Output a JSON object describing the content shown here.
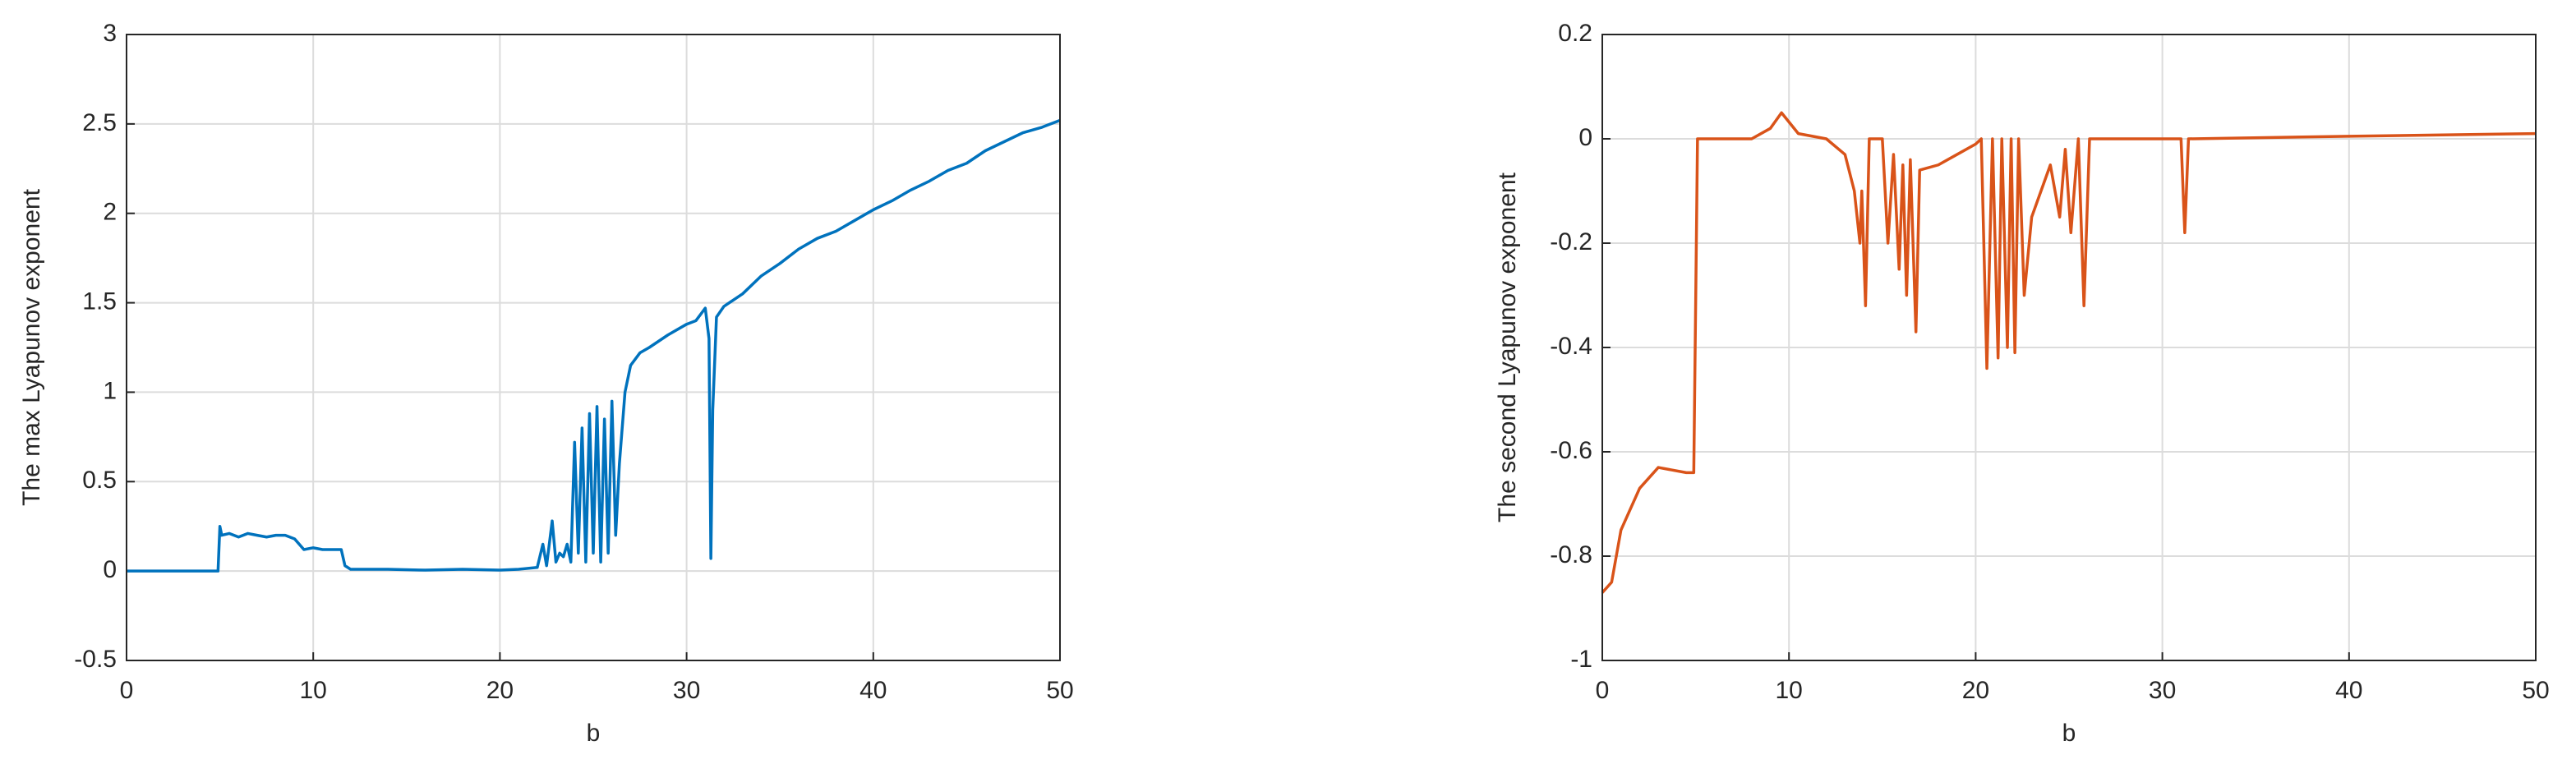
{
  "chart_data": [
    {
      "type": "line",
      "xlabel": "b",
      "ylabel": "The max Lyapunov exponent",
      "xlim": [
        0,
        50
      ],
      "xticks": [
        0,
        10,
        20,
        30,
        40,
        50
      ],
      "ylim": [
        -0.5,
        3
      ],
      "yticks": [
        -0.5,
        0,
        0.5,
        1,
        1.5,
        2,
        2.5,
        3
      ],
      "grid": true,
      "x": [
        0,
        4.9,
        5,
        5.1,
        5.5,
        6,
        6.5,
        7,
        7.5,
        8,
        8.5,
        9,
        9.5,
        10,
        10.5,
        11,
        11.5,
        11.7,
        12,
        14,
        16,
        18,
        20,
        21,
        22,
        22.3,
        22.5,
        22.8,
        23,
        23.2,
        23.4,
        23.6,
        23.8,
        24,
        24.2,
        24.4,
        24.6,
        24.8,
        25,
        25.2,
        25.4,
        25.6,
        25.8,
        26,
        26.2,
        26.4,
        26.7,
        27,
        27.5,
        28,
        29,
        30,
        30.5,
        31,
        31.2,
        31.3,
        31.4,
        31.6,
        32,
        33,
        34,
        35,
        36,
        37,
        38,
        39,
        40,
        41,
        42,
        43,
        44,
        45,
        46,
        47,
        48,
        49,
        50
      ],
      "series": [
        {
          "color": "#0072bd",
          "values": [
            0,
            0,
            0.25,
            0.2,
            0.21,
            0.19,
            0.21,
            0.2,
            0.19,
            0.2,
            0.2,
            0.18,
            0.12,
            0.13,
            0.12,
            0.12,
            0.12,
            0.03,
            0.01,
            0.01,
            0.005,
            0.01,
            0.005,
            0.01,
            0.02,
            0.15,
            0.03,
            0.28,
            0.05,
            0.1,
            0.08,
            0.15,
            0.05,
            0.72,
            0.1,
            0.8,
            0.05,
            0.88,
            0.1,
            0.92,
            0.05,
            0.85,
            0.1,
            0.95,
            0.2,
            0.6,
            1.0,
            1.15,
            1.22,
            1.25,
            1.32,
            1.38,
            1.4,
            1.47,
            1.3,
            0.07,
            0.9,
            1.42,
            1.48,
            1.55,
            1.65,
            1.72,
            1.8,
            1.86,
            1.9,
            1.96,
            2.02,
            2.07,
            2.13,
            2.18,
            2.24,
            2.28,
            2.35,
            2.4,
            2.45,
            2.48,
            2.52
          ]
        }
      ]
    },
    {
      "type": "line",
      "xlabel": "b",
      "ylabel": "The second Lyapunov exponent",
      "xlim": [
        0,
        50
      ],
      "xticks": [
        0,
        10,
        20,
        30,
        40,
        50
      ],
      "ylim": [
        -1,
        0.2
      ],
      "yticks": [
        -1,
        -0.8,
        -0.6,
        -0.4,
        -0.2,
        0,
        0.2
      ],
      "grid": true,
      "x": [
        0,
        0.5,
        1,
        2,
        3,
        4.5,
        4.9,
        5.1,
        8,
        9,
        9.6,
        10.5,
        12,
        13,
        13.5,
        13.8,
        13.9,
        14.1,
        14.3,
        15,
        15.3,
        15.6,
        15.9,
        16.1,
        16.3,
        16.5,
        16.8,
        17,
        18,
        19,
        20,
        20.3,
        20.6,
        20.9,
        21.2,
        21.4,
        21.7,
        21.9,
        22.1,
        22.3,
        22.6,
        23,
        24,
        24.5,
        24.8,
        25.1,
        25.5,
        25.8,
        26.1,
        31,
        31.2,
        31.4,
        40,
        50
      ],
      "series": [
        {
          "color": "#d95319",
          "values": [
            -0.87,
            -0.85,
            -0.75,
            -0.67,
            -0.63,
            -0.64,
            -0.64,
            0,
            0,
            0.02,
            0.05,
            0.01,
            0,
            -0.03,
            -0.1,
            -0.2,
            -0.1,
            -0.32,
            0,
            0,
            -0.2,
            -0.03,
            -0.25,
            -0.05,
            -0.3,
            -0.04,
            -0.37,
            -0.06,
            -0.05,
            -0.03,
            -0.01,
            0,
            -0.44,
            0,
            -0.42,
            0,
            -0.4,
            0,
            -0.41,
            0,
            -0.3,
            -0.15,
            -0.05,
            -0.15,
            -0.02,
            -0.18,
            0,
            -0.32,
            0,
            0,
            -0.18,
            0,
            0.005,
            0.01
          ]
        }
      ]
    }
  ]
}
